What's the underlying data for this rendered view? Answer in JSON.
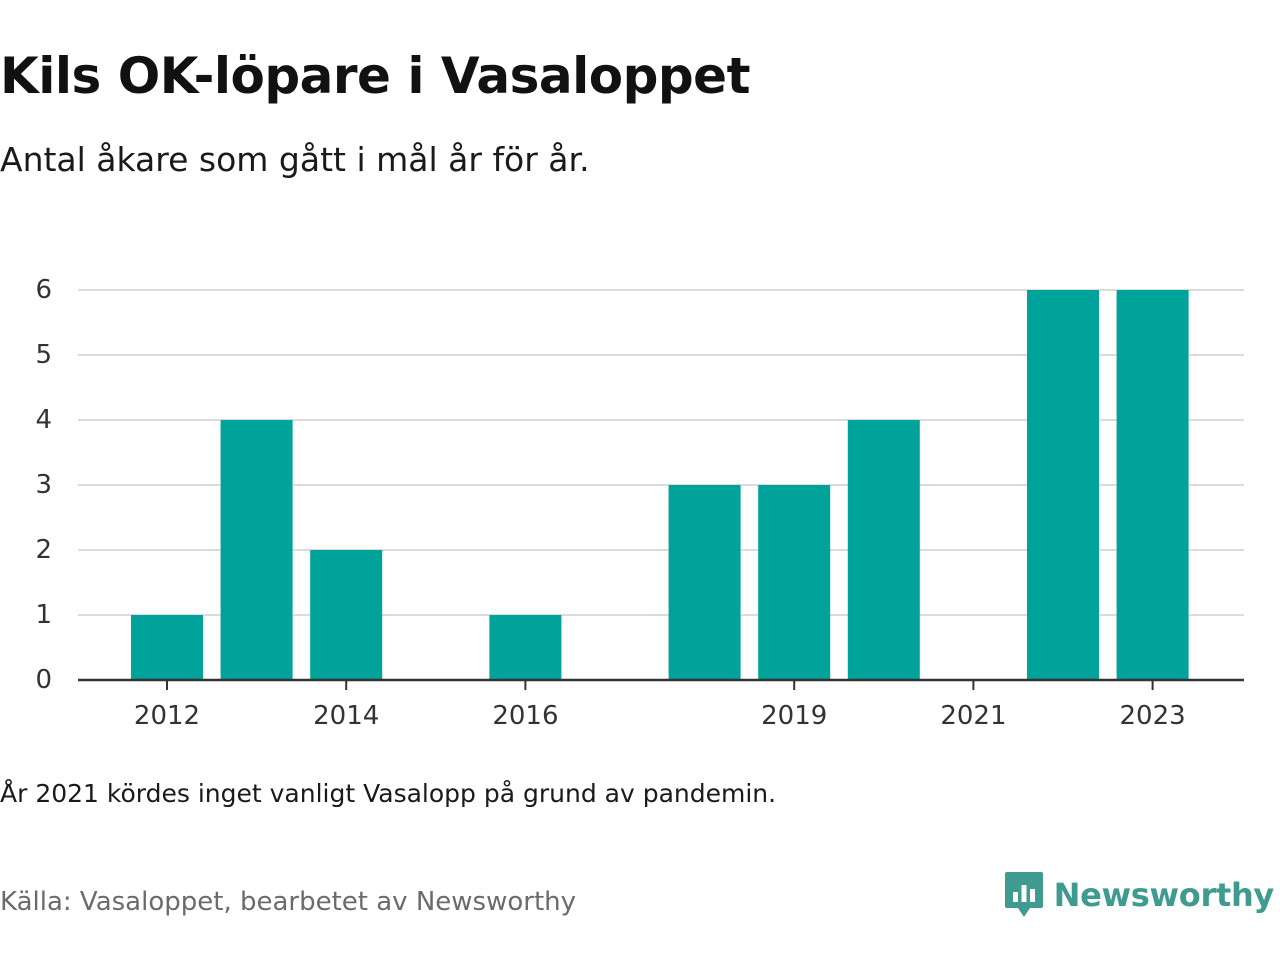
{
  "header": {
    "title": "Kils OK-löpare i Vasaloppet",
    "subtitle": "Antal åkare som gått i mål år för år."
  },
  "footer": {
    "note": "År 2021 kördes inget vanligt Vasalopp på grund av pandemin.",
    "source": "Källa: Vasaloppet, bearbetet av Newsworthy",
    "brand": "Newsworthy"
  },
  "icons": {
    "logo": "newsworthy-chart-bubble-icon"
  },
  "colors": {
    "bar": "#00a39a",
    "logo": "#3f9a8f",
    "grid": "#dcdcdc",
    "axis": "#333333"
  },
  "chart_data": {
    "type": "bar",
    "categories": [
      "2012",
      "2013",
      "2014",
      "2015",
      "2016",
      "2017",
      "2018",
      "2019",
      "2020",
      "2021",
      "2022",
      "2023"
    ],
    "tick_labels": [
      "2012",
      "",
      "2014",
      "",
      "2016",
      "",
      "",
      "2019",
      "",
      "2021",
      "",
      "2023"
    ],
    "values": [
      1,
      4,
      2,
      0,
      1,
      0,
      3,
      3,
      4,
      0,
      6,
      6
    ],
    "title": "Kils OK-löpare i Vasaloppet",
    "subtitle": "Antal åkare som gått i mål år för år.",
    "xlabel": "",
    "ylabel": "",
    "ylim": [
      0,
      6
    ],
    "yticks": [
      0,
      1,
      2,
      3,
      4,
      5,
      6
    ],
    "grid": true,
    "legend": "none"
  }
}
